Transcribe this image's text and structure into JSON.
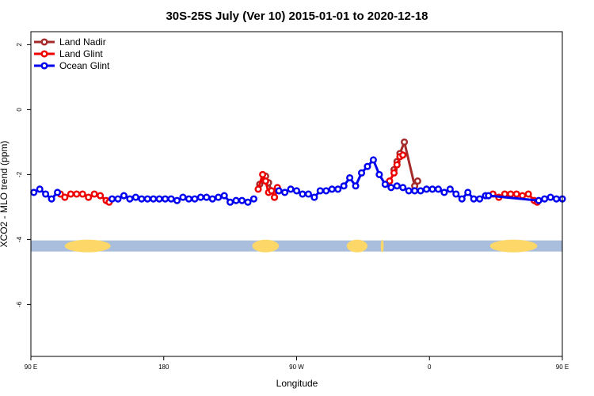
{
  "chart_data": {
    "type": "line",
    "title": "30S-25S July (Ver 10)   2015-01-01 to 2020-12-18",
    "xlabel": "Longitude",
    "ylabel": "XCO2 - MLO trend (ppm)",
    "xlim": [
      90,
      450
    ],
    "ylim": [
      -7.6,
      2.4
    ],
    "x_tick_values": [
      90,
      180,
      270,
      360,
      450,
      540
    ],
    "x_tick_labels": [
      "90 E",
      "180",
      "90 W",
      "0",
      "90 E",
      "180"
    ],
    "y_ticks": [
      2,
      0,
      -2,
      -4,
      -6
    ],
    "grid": false,
    "legend": {
      "position": "top-left",
      "entries": [
        {
          "name": "Land Nadir",
          "color": "#a52a2a"
        },
        {
          "name": "Land Glint",
          "color": "#ee0000"
        },
        {
          "name": "Ocean Glint",
          "color": "#0000ee"
        }
      ]
    },
    "surface_band": {
      "y": -4.2,
      "ocean_color": "#a9bedc",
      "land_color": "#fdd869",
      "land_segments": [
        [
          113,
          144
        ],
        [
          240,
          258
        ],
        [
          304,
          318
        ],
        [
          327,
          329
        ],
        [
          401,
          433
        ]
      ]
    },
    "series": [
      {
        "name": "Land Nadir",
        "color": "#a52a2a",
        "x": [
          245,
          249,
          251,
          253,
          255,
          257,
          336,
          338,
          340,
          343,
          350,
          352
        ],
        "y": [
          -2.3,
          -2.05,
          -2.25,
          -2.5,
          -2.7,
          -2.45,
          -1.85,
          -1.6,
          -1.35,
          -1.0,
          -2.35,
          -2.2
        ]
      },
      {
        "name": "Land Glint",
        "color": "#ee0000",
        "x": [
          110,
          113,
          117,
          121,
          125,
          129,
          133,
          137,
          141,
          143,
          244,
          247,
          249,
          251,
          253,
          255,
          257,
          333,
          336,
          338,
          340,
          342,
          403,
          407,
          411,
          415,
          419,
          423,
          427,
          431,
          433
        ],
        "y": [
          -2.6,
          -2.7,
          -2.6,
          -2.6,
          -2.6,
          -2.7,
          -2.6,
          -2.65,
          -2.8,
          -2.85,
          -2.45,
          -2.0,
          -2.2,
          -2.55,
          -2.5,
          -2.7,
          -2.4,
          -2.2,
          -1.95,
          -1.7,
          -1.45,
          -1.4,
          -2.6,
          -2.7,
          -2.6,
          -2.6,
          -2.6,
          -2.65,
          -2.6,
          -2.8,
          -2.85
        ],
        "dashed": false
      },
      {
        "name": "Ocean Glint",
        "color": "#0000ee",
        "x": [
          92,
          96,
          100,
          104,
          108,
          145,
          149,
          153,
          157,
          161,
          165,
          169,
          173,
          177,
          181,
          185,
          189,
          193,
          197,
          201,
          205,
          209,
          213,
          217,
          221,
          225,
          229,
          233,
          237,
          241,
          258,
          262,
          266,
          270,
          274,
          278,
          282,
          286,
          290,
          294,
          298,
          302,
          306,
          310,
          314,
          318,
          322,
          326,
          330,
          334,
          338,
          342,
          346,
          350,
          354,
          358,
          362,
          366,
          370,
          374,
          378,
          382,
          386,
          390,
          394,
          398,
          400,
          434,
          438,
          442,
          446,
          450
        ],
        "y": [
          -2.55,
          -2.45,
          -2.6,
          -2.75,
          -2.55,
          -2.75,
          -2.75,
          -2.65,
          -2.75,
          -2.7,
          -2.75,
          -2.75,
          -2.75,
          -2.75,
          -2.75,
          -2.75,
          -2.8,
          -2.7,
          -2.75,
          -2.75,
          -2.7,
          -2.7,
          -2.75,
          -2.7,
          -2.65,
          -2.85,
          -2.8,
          -2.8,
          -2.85,
          -2.75,
          -2.5,
          -2.55,
          -2.45,
          -2.5,
          -2.6,
          -2.6,
          -2.7,
          -2.5,
          -2.5,
          -2.45,
          -2.45,
          -2.35,
          -2.1,
          -2.35,
          -1.95,
          -1.75,
          -1.55,
          -2.0,
          -2.3,
          -2.4,
          -2.35,
          -2.4,
          -2.5,
          -2.5,
          -2.5,
          -2.45,
          -2.45,
          -2.45,
          -2.55,
          -2.45,
          -2.6,
          -2.75,
          -2.55,
          -2.75,
          -2.75,
          -2.65,
          -2.65,
          -2.8,
          -2.75,
          -2.7,
          -2.75,
          -2.75
        ],
        "breaks_after_index": [
          4,
          29
        ]
      }
    ]
  }
}
